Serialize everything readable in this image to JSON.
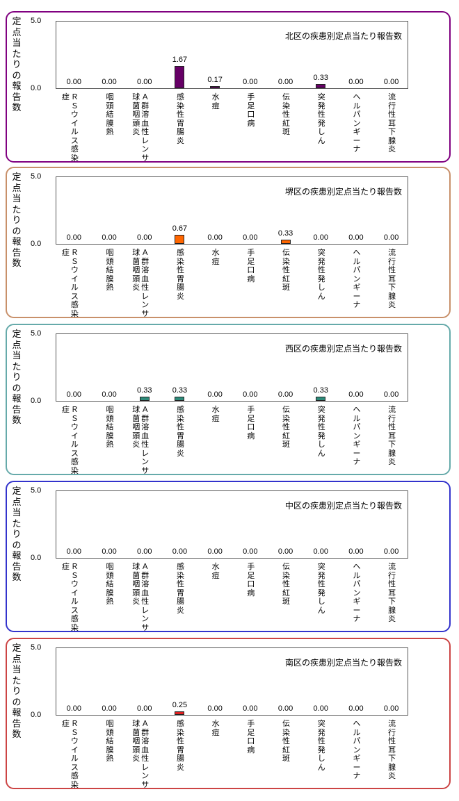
{
  "y_axis_label": "定点当たりの報告数",
  "categories": [
    [
      "ＲＳウイルス感染",
      "症"
    ],
    [
      "咽頭結膜熱"
    ],
    [
      "Ａ群溶血性レンサ",
      "球菌咽頭炎"
    ],
    [
      "感染性胃腸炎"
    ],
    [
      "水痘"
    ],
    [
      "手足口病"
    ],
    [
      "伝染性紅斑"
    ],
    [
      "突発性発しん"
    ],
    [
      "ヘルパンギーナ"
    ],
    [
      "流行性耳下腺炎"
    ]
  ],
  "chart_data": [
    {
      "type": "bar",
      "title": "北区の疾患別定点当たり報告数",
      "ylabel": "定点当たりの報告数",
      "ylim": [
        0,
        5
      ],
      "yticks": [
        "0.0",
        "5.0"
      ],
      "categories": [
        "ＲＳウイルス感染症",
        "咽頭結膜熱",
        "Ａ群溶血性レンサ球菌咽頭炎",
        "感染性胃腸炎",
        "水痘",
        "手足口病",
        "伝染性紅斑",
        "突発性発しん",
        "ヘルパンギーナ",
        "流行性耳下腺炎"
      ],
      "values": [
        0.0,
        0.0,
        0.0,
        1.67,
        0.17,
        0.0,
        0.0,
        0.33,
        0.0,
        0.0
      ],
      "labels": [
        "0.00",
        "0.00",
        "0.00",
        "1.67",
        "0.17",
        "0.00",
        "0.00",
        "0.33",
        "0.00",
        "0.00"
      ],
      "bar_color": "#660066",
      "border_color": "#800080"
    },
    {
      "type": "bar",
      "title": "堺区の疾患別定点当たり報告数",
      "ylabel": "定点当たりの報告数",
      "ylim": [
        0,
        5
      ],
      "yticks": [
        "0.0",
        "5.0"
      ],
      "categories": [
        "ＲＳウイルス感染症",
        "咽頭結膜熱",
        "Ａ群溶血性レンサ球菌咽頭炎",
        "感染性胃腸炎",
        "水痘",
        "手足口病",
        "伝染性紅斑",
        "突発性発しん",
        "ヘルパンギーナ",
        "流行性耳下腺炎"
      ],
      "values": [
        0.0,
        0.0,
        0.0,
        0.67,
        0.0,
        0.0,
        0.33,
        0.0,
        0.0,
        0.0
      ],
      "labels": [
        "0.00",
        "0.00",
        "0.00",
        "0.67",
        "0.00",
        "0.00",
        "0.33",
        "0.00",
        "0.00",
        "0.00"
      ],
      "bar_color": "#FF6600",
      "border_color": "#C8906A"
    },
    {
      "type": "bar",
      "title": "西区の疾患別定点当たり報告数",
      "ylabel": "定点当たりの報告数",
      "ylim": [
        0,
        5
      ],
      "yticks": [
        "0.0",
        "5.0"
      ],
      "categories": [
        "ＲＳウイルス感染症",
        "咽頭結膜熱",
        "Ａ群溶血性レンサ球菌咽頭炎",
        "感染性胃腸炎",
        "水痘",
        "手足口病",
        "伝染性紅斑",
        "突発性発しん",
        "ヘルパンギーナ",
        "流行性耳下腺炎"
      ],
      "values": [
        0.0,
        0.0,
        0.33,
        0.33,
        0.0,
        0.0,
        0.0,
        0.33,
        0.0,
        0.0
      ],
      "labels": [
        "0.00",
        "0.00",
        "0.33",
        "0.33",
        "0.00",
        "0.00",
        "0.00",
        "0.33",
        "0.00",
        "0.00"
      ],
      "bar_color": "#2E8B7A",
      "border_color": "#66AAAA"
    },
    {
      "type": "bar",
      "title": "中区の疾患別定点当たり報告数",
      "ylabel": "定点当たりの報告数",
      "ylim": [
        0,
        5
      ],
      "yticks": [
        "0.0",
        "5.0"
      ],
      "categories": [
        "ＲＳウイルス感染症",
        "咽頭結膜熱",
        "Ａ群溶血性レンサ球菌咽頭炎",
        "感染性胃腸炎",
        "水痘",
        "手足口病",
        "伝染性紅斑",
        "突発性発しん",
        "ヘルパンギーナ",
        "流行性耳下腺炎"
      ],
      "values": [
        0.0,
        0.0,
        0.0,
        0.0,
        0.0,
        0.0,
        0.0,
        0.0,
        0.0,
        0.0
      ],
      "labels": [
        "0.00",
        "0.00",
        "0.00",
        "0.00",
        "0.00",
        "0.00",
        "0.00",
        "0.00",
        "0.00",
        "0.00"
      ],
      "bar_color": "#3333CC",
      "border_color": "#3333CC"
    },
    {
      "type": "bar",
      "title": "南区の疾患別定点当たり報告数",
      "ylabel": "定点当たりの報告数",
      "ylim": [
        0,
        5
      ],
      "yticks": [
        "0.0",
        "5.0"
      ],
      "categories": [
        "ＲＳウイルス感染症",
        "咽頭結膜熱",
        "Ａ群溶血性レンサ球菌咽頭炎",
        "感染性胃腸炎",
        "水痘",
        "手足口病",
        "伝染性紅斑",
        "突発性発しん",
        "ヘルパンギーナ",
        "流行性耳下腺炎"
      ],
      "values": [
        0.0,
        0.0,
        0.0,
        0.25,
        0.0,
        0.0,
        0.0,
        0.0,
        0.0,
        0.0
      ],
      "labels": [
        "0.00",
        "0.00",
        "0.00",
        "0.25",
        "0.00",
        "0.00",
        "0.00",
        "0.00",
        "0.00",
        "0.00"
      ],
      "bar_color": "#E02020",
      "border_color": "#CC4444"
    }
  ]
}
